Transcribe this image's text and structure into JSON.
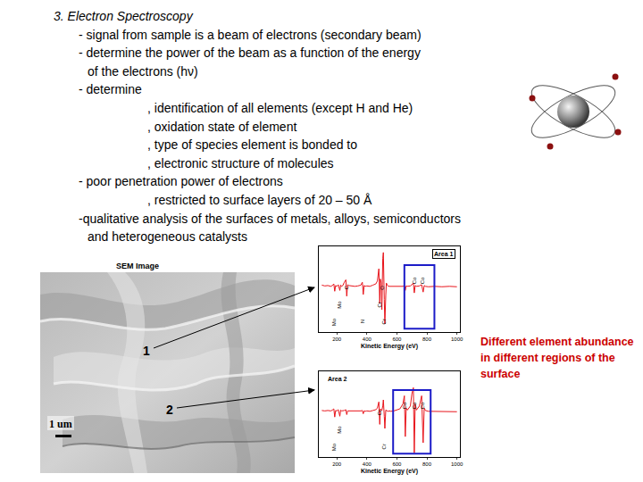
{
  "slide": {
    "title": "3. Electron Spectroscopy",
    "items": [
      {
        "lines": [
          "- signal from sample is a beam of electrons (secondary beam)"
        ]
      },
      {
        "lines": [
          "- determine the power of the beam as a function of the energy",
          "of the electrons (hν)"
        ]
      },
      {
        "lines": [
          "- determine"
        ],
        "sub": [
          ", identification of all elements (except H and He)",
          ", oxidation state of element",
          ", type of species element is bonded to",
          ", electronic structure of molecules"
        ]
      },
      {
        "lines": [
          "- poor penetration power of electrons"
        ],
        "sub": [
          ", restricted to surface layers of 20 – 50 Å"
        ]
      },
      {
        "lines": [
          "-qualitative analysis of the surfaces of metals, alloys, semiconductors",
          "and heterogeneous catalysts"
        ]
      }
    ]
  },
  "image": {
    "title": "SEM Image",
    "markers": [
      "1",
      "2"
    ],
    "scale_bar": "1 um"
  },
  "note": "Different element abundance in different regions of the surface",
  "chart_data": [
    {
      "type": "line",
      "title": "Area 1",
      "xlabel": "Kinetic Energy (eV)",
      "color": "#e8141b",
      "x": [
        100,
        120,
        140,
        160,
        170,
        180,
        186,
        192,
        200,
        210,
        220,
        226,
        232,
        240,
        250,
        260,
        266,
        272,
        280,
        300,
        320,
        340,
        360,
        370,
        376,
        382,
        390,
        400,
        420,
        440,
        460,
        470,
        480,
        486,
        490,
        496,
        500,
        506,
        510,
        516,
        520,
        526,
        530,
        536,
        540,
        550,
        560,
        580,
        600,
        620,
        640,
        650,
        656,
        662,
        670,
        690,
        700,
        710,
        716,
        722,
        730,
        750,
        765,
        775,
        782,
        790,
        810,
        850,
        900,
        950,
        1000
      ],
      "values": [
        5,
        3,
        4,
        2,
        4,
        8,
        -10,
        4,
        2,
        6,
        -8,
        5,
        2,
        4,
        12,
        18,
        -22,
        6,
        4,
        3,
        2,
        3,
        5,
        12,
        -18,
        4,
        2,
        3,
        2,
        5,
        8,
        15,
        45,
        -40,
        20,
        10,
        -55,
        70,
        85,
        -30,
        -90,
        -20,
        10,
        5,
        3,
        2,
        2,
        1,
        2,
        1,
        2,
        4,
        -8,
        3,
        2,
        3,
        6,
        10,
        -14,
        4,
        2,
        3,
        6,
        -12,
        4,
        2,
        1,
        2,
        1,
        2,
        1
      ],
      "xlim": [
        80,
        1020
      ],
      "xticks": [
        200,
        400,
        600,
        800,
        1000
      ],
      "ylim": [
        -110,
        100
      ],
      "tick_labels": "x",
      "grid": false,
      "highlight": [
        650,
        850
      ],
      "annotations": [
        {
          "text": "Mo",
          "x": 186
        },
        {
          "text": "Mo",
          "x": 220
        },
        {
          "text": "C",
          "x": 266
        },
        {
          "text": "N",
          "x": 376
        },
        {
          "text": "Cr",
          "x": 486
        },
        {
          "text": "O",
          "x": 500
        },
        {
          "text": "Cr",
          "x": 520
        },
        {
          "text": "Co",
          "x": 716
        },
        {
          "text": "Co",
          "x": 775
        }
      ]
    },
    {
      "type": "line",
      "title": "Area 2",
      "xlabel": "Kinetic Energy (eV)",
      "color": "#e8141b",
      "x": [
        100,
        120,
        140,
        160,
        170,
        180,
        186,
        192,
        200,
        210,
        220,
        226,
        232,
        240,
        250,
        260,
        266,
        272,
        280,
        300,
        320,
        340,
        360,
        370,
        376,
        382,
        390,
        400,
        420,
        440,
        460,
        470,
        480,
        486,
        490,
        496,
        500,
        506,
        510,
        516,
        520,
        526,
        530,
        536,
        540,
        550,
        560,
        580,
        600,
        620,
        640,
        650,
        656,
        662,
        670,
        690,
        700,
        710,
        716,
        722,
        730,
        750,
        765,
        775,
        782,
        790,
        810,
        850,
        900,
        950,
        1000
      ],
      "values": [
        4,
        3,
        4,
        3,
        5,
        8,
        -12,
        4,
        3,
        6,
        -10,
        5,
        3,
        3,
        4,
        6,
        -6,
        3,
        3,
        2,
        3,
        2,
        3,
        4,
        -4,
        3,
        2,
        3,
        2,
        4,
        6,
        10,
        25,
        -30,
        8,
        5,
        4,
        15,
        30,
        -10,
        -40,
        5,
        4,
        3,
        2,
        3,
        2,
        3,
        5,
        8,
        20,
        40,
        -60,
        10,
        5,
        15,
        45,
        60,
        -100,
        20,
        5,
        15,
        40,
        -75,
        10,
        4,
        2,
        2,
        1,
        2,
        1
      ],
      "xlim": [
        80,
        1020
      ],
      "xticks": [
        200,
        400,
        600,
        800,
        1000
      ],
      "ylim": [
        -110,
        100
      ],
      "tick_labels": "x",
      "grid": false,
      "highlight": [
        575,
        825
      ],
      "annotations": [
        {
          "text": "Mo",
          "x": 186
        },
        {
          "text": "Mo",
          "x": 220
        },
        {
          "text": "Cr",
          "x": 486
        },
        {
          "text": "Cr",
          "x": 520
        },
        {
          "text": "Co",
          "x": 656
        },
        {
          "text": "Co",
          "x": 716
        },
        {
          "text": "Co",
          "x": 775
        }
      ]
    }
  ]
}
